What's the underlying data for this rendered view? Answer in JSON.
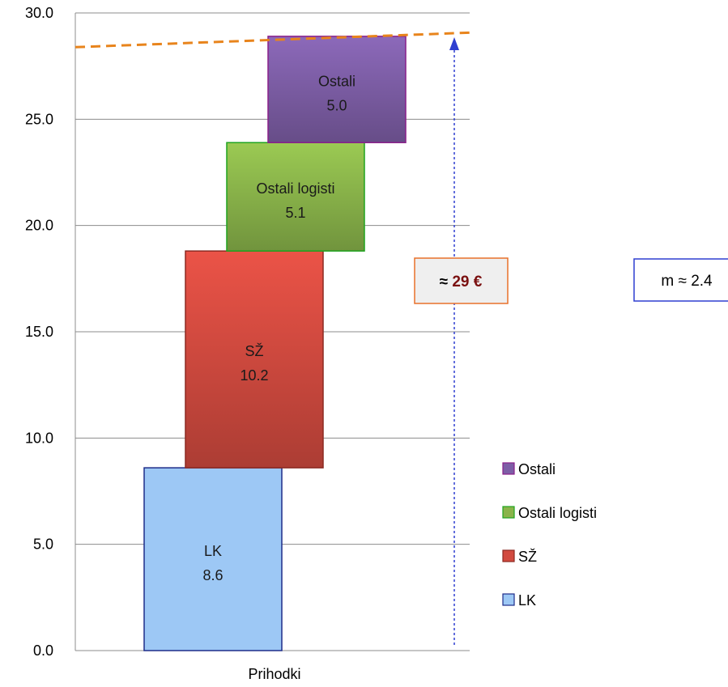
{
  "chart_data": {
    "type": "bar",
    "stacked": true,
    "waterfall": true,
    "categories": [
      "Prihodki"
    ],
    "ylim": [
      0,
      30
    ],
    "yticks": [
      "0.0",
      "5.0",
      "10.0",
      "15.0",
      "20.0",
      "25.0",
      "30.0"
    ],
    "grid": true,
    "legend_position": "bottom-right",
    "series": [
      {
        "name": "LK",
        "value": 8.6,
        "label": "8.6",
        "color": "#9dc8f5",
        "border": "#1f2d8a"
      },
      {
        "name": "SŽ",
        "value": 10.2,
        "label": "10.2",
        "color": "#d24a3f",
        "border": "#8c2a22"
      },
      {
        "name": "Ostali logisti",
        "value": 5.1,
        "label": "5.1",
        "color": "#8ab44a",
        "border": "#1fa31f"
      },
      {
        "name": "Ostali",
        "value": 5.0,
        "label": "5.0",
        "color": "#7d5ea6",
        "border": "#8a1f8a"
      }
    ],
    "total_line": {
      "value": 29,
      "color": "#e8841c"
    },
    "annotations": {
      "total_box": {
        "prefix": "≈ ",
        "value": "29 €",
        "text_color": "#7a1010",
        "border": "#e8702a"
      },
      "m_box": {
        "text": "m ≈ 2.4",
        "border": "#2f3fd0"
      }
    }
  }
}
